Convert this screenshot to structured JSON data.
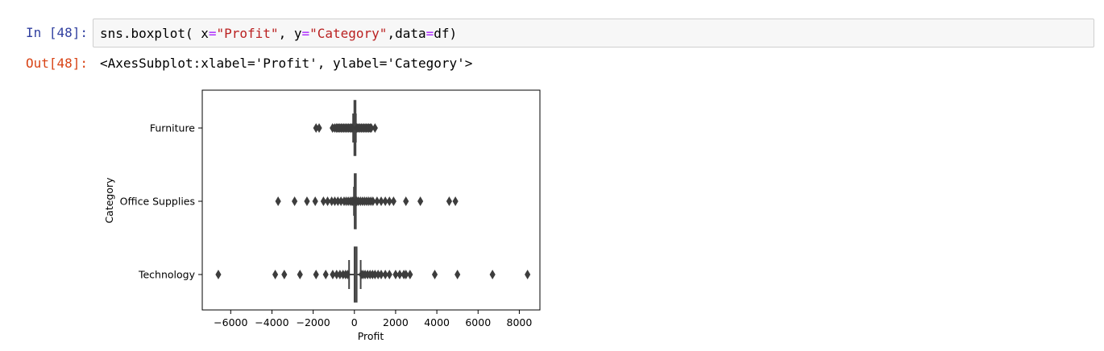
{
  "cell_in": {
    "prompt": "In [48]:",
    "code": {
      "p1": "sns.boxplot( x",
      "eq1": "=",
      "s1": "\"Profit\"",
      "p2": ", y",
      "eq2": "=",
      "s2": "\"Category\"",
      "p3": ",data",
      "eq3": "=",
      "p4": "df)"
    }
  },
  "cell_out": {
    "prompt": "Out[48]:",
    "text": "<AxesSubplot:xlabel='Profit', ylabel='Category'>"
  },
  "chart_data": {
    "type": "box",
    "orientation": "horizontal",
    "xlabel": "Profit",
    "ylabel": "Category",
    "xlim": [
      -7380,
      9000
    ],
    "xticks": [
      -6000,
      -4000,
      -2000,
      0,
      2000,
      4000,
      6000,
      8000
    ],
    "xtick_labels": [
      "−6000",
      "−4000",
      "−2000",
      "0",
      "2000",
      "4000",
      "6000",
      "8000"
    ],
    "grid": false,
    "colors": {
      "box": "#444444",
      "median": "#444444"
    },
    "categories": [
      "Furniture",
      "Office Supplies",
      "Technology"
    ],
    "boxes": [
      {
        "category": "Furniture",
        "q1": -12,
        "median": 9,
        "q3": 22,
        "whisker_low": -62,
        "whisker_high": 73,
        "outliers": [
          -1860,
          -1710,
          -1060,
          -960,
          -880,
          -820,
          -760,
          -700,
          -640,
          -580,
          -520,
          -460,
          -400,
          -340,
          -280,
          -220,
          -160,
          -110,
          110,
          160,
          220,
          280,
          340,
          400,
          460,
          520,
          580,
          640,
          700,
          760,
          820,
          1000
        ]
      },
      {
        "category": "Office Supplies",
        "q1": 3,
        "median": 7,
        "q3": 20,
        "whisker_low": -22,
        "whisker_high": 45,
        "outliers": [
          -3700,
          -2900,
          -2300,
          -1900,
          -1500,
          -1300,
          -1100,
          -950,
          -800,
          -650,
          -500,
          -400,
          -300,
          -200,
          -120,
          -70,
          70,
          120,
          200,
          300,
          400,
          500,
          600,
          700,
          800,
          900,
          1100,
          1300,
          1500,
          1700,
          1900,
          2500,
          3200,
          4600,
          4900
        ]
      },
      {
        "category": "Technology",
        "q1": -3,
        "median": 25,
        "q3": 120,
        "whisker_low": -258,
        "whisker_high": 305,
        "outliers": [
          -6600,
          -3840,
          -3400,
          -2640,
          -1860,
          -1390,
          -1050,
          -860,
          -700,
          -550,
          -430,
          -330,
          340,
          420,
          520,
          640,
          760,
          880,
          1000,
          1150,
          1300,
          1500,
          1700,
          2000,
          2200,
          2400,
          2500,
          2700,
          3900,
          5000,
          6700,
          8400
        ]
      }
    ]
  }
}
